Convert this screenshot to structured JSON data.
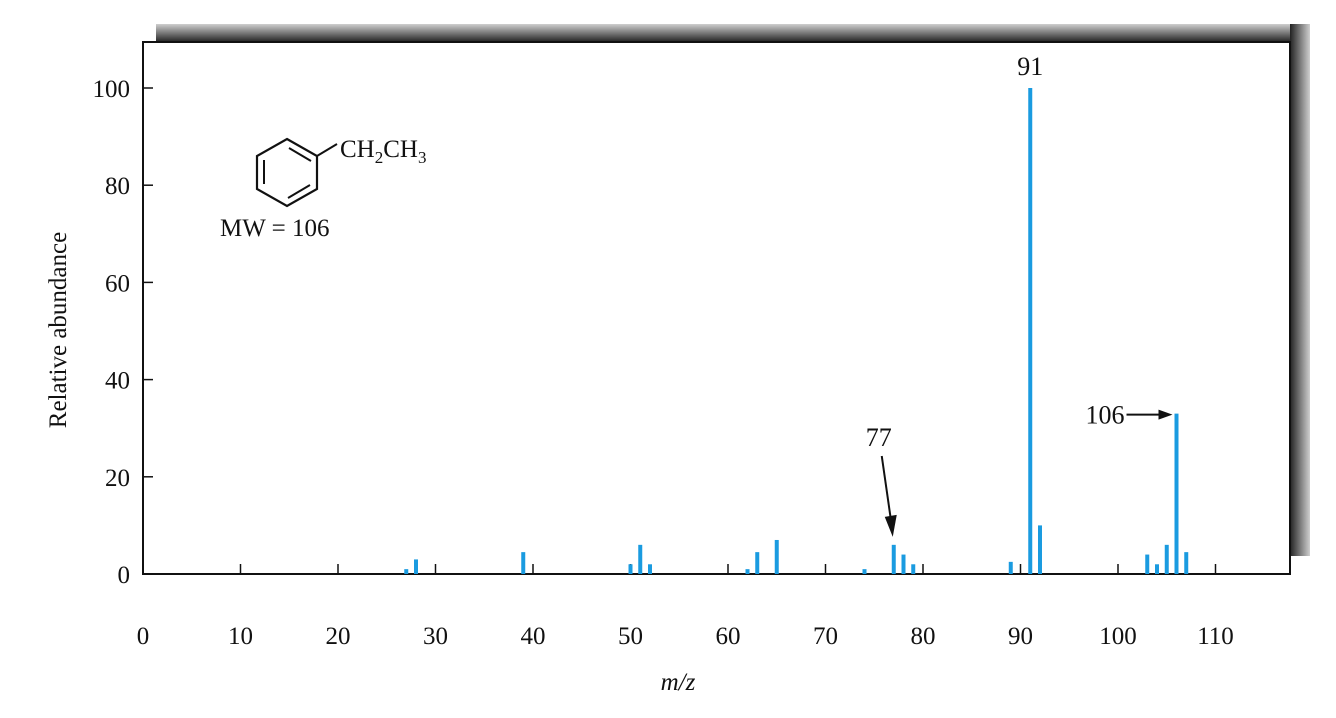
{
  "chart_data": {
    "type": "bar",
    "title": "",
    "xlabel": "m/z",
    "ylabel": "Relative abundance",
    "xlim": [
      0,
      117
    ],
    "ylim": [
      0,
      110
    ],
    "xticks": [
      "0",
      "10",
      "20",
      "30",
      "40",
      "50",
      "60",
      "70",
      "80",
      "90",
      "100",
      "110"
    ],
    "yticks": [
      "0",
      "20",
      "40",
      "60",
      "80",
      "100"
    ],
    "grid": false,
    "bar_color": "#1a9be0",
    "x": [
      27,
      28,
      39,
      50,
      51,
      52,
      62,
      63,
      65,
      74,
      77,
      78,
      79,
      89,
      91,
      92,
      103,
      104,
      105,
      106,
      107
    ],
    "values": [
      1,
      3,
      4.5,
      2,
      6,
      2,
      1,
      4.5,
      7,
      1,
      6,
      4,
      2,
      2.5,
      100,
      10,
      4,
      2,
      6,
      33,
      4.5
    ],
    "annotations": [
      {
        "label": "91",
        "x": 91,
        "y": 100
      },
      {
        "label": "77",
        "x": 77,
        "y": 6
      },
      {
        "label": "106",
        "x": 106,
        "y": 33
      }
    ],
    "structure": {
      "substituent_main": "CH",
      "sub1": "2",
      "substituent_mid": "CH",
      "sub2": "3",
      "mw_label": "MW = 106"
    }
  }
}
